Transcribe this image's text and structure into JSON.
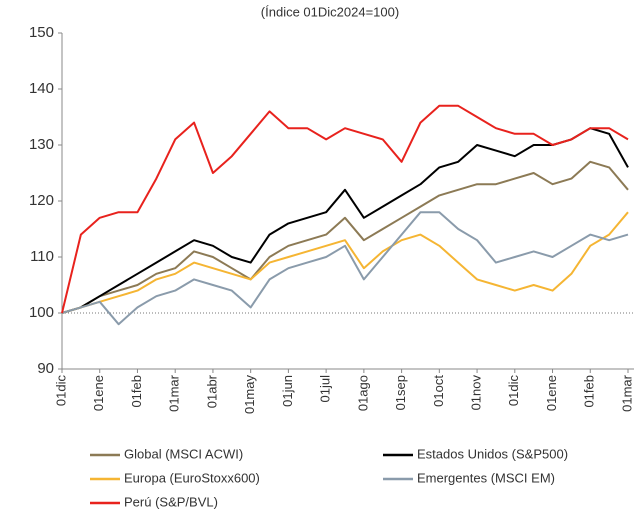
{
  "chart_data": {
    "type": "line",
    "title": "(Índice 01Dic2024=100)",
    "categories": [
      "01dic",
      null,
      "01ene",
      null,
      "01feb",
      null,
      "01mar",
      null,
      "01abr",
      null,
      "01may",
      null,
      "01jun",
      null,
      "01jul",
      null,
      "01ago",
      null,
      "01sep",
      null,
      "01oct",
      null,
      "01nov",
      null,
      "01dic",
      null,
      "01ene",
      null,
      "01feb",
      null,
      "01mar"
    ],
    "series": [
      {
        "name": "Global (MSCI ACWI)",
        "color": "#8c7a55",
        "values": [
          100,
          101,
          103,
          104,
          105,
          107,
          108,
          111,
          110,
          108,
          106,
          110,
          112,
          113,
          114,
          117,
          113,
          115,
          117,
          119,
          121,
          122,
          123,
          123,
          124,
          125,
          123,
          124,
          127,
          126,
          122
        ]
      },
      {
        "name": "Estados Unidos (S&P500)",
        "color": "#000000",
        "values": [
          100,
          101,
          103,
          105,
          107,
          109,
          111,
          113,
          112,
          110,
          109,
          114,
          116,
          117,
          118,
          122,
          117,
          119,
          121,
          123,
          126,
          127,
          130,
          129,
          128,
          130,
          130,
          131,
          133,
          132,
          126
        ]
      },
      {
        "name": "Europa (EuroStoxx600)",
        "color": "#f5b533",
        "values": [
          100,
          101,
          102,
          103,
          104,
          106,
          107,
          109,
          108,
          107,
          106,
          109,
          110,
          111,
          112,
          113,
          108,
          111,
          113,
          114,
          112,
          109,
          106,
          105,
          104,
          105,
          104,
          107,
          112,
          114,
          118
        ]
      },
      {
        "name": "Emergentes (MSCI EM)",
        "color": "#8a9bab",
        "values": [
          100,
          101,
          102,
          98,
          101,
          103,
          104,
          106,
          105,
          104,
          101,
          106,
          108,
          109,
          110,
          112,
          106,
          110,
          114,
          118,
          118,
          115,
          113,
          109,
          110,
          111,
          110,
          112,
          114,
          113,
          114
        ]
      },
      {
        "name": "Perú (S&P/BVL)",
        "color": "#e8221d",
        "values": [
          100,
          114,
          117,
          118,
          118,
          124,
          131,
          134,
          125,
          128,
          132,
          136,
          133,
          133,
          131,
          133,
          132,
          131,
          127,
          134,
          137,
          137,
          135,
          133,
          132,
          132,
          130,
          131,
          133,
          133,
          131
        ]
      }
    ],
    "ylim": [
      90,
      150
    ],
    "yticks": [
      90,
      100,
      110,
      120,
      130,
      140,
      150
    ],
    "reference_line": 100
  }
}
